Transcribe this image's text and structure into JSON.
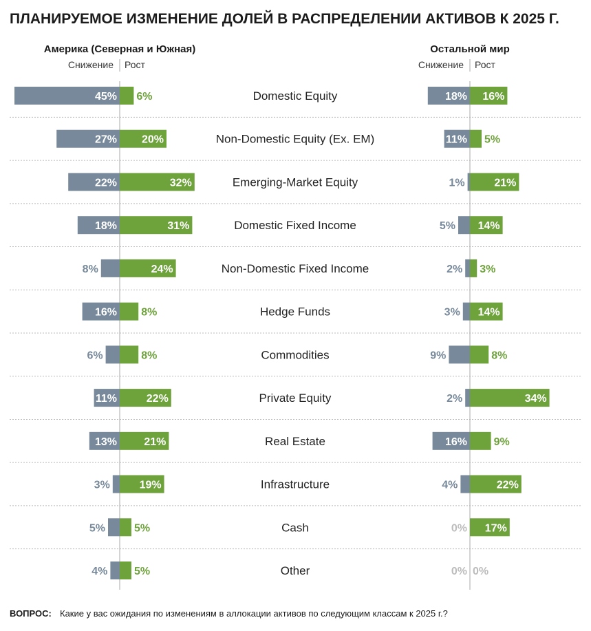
{
  "title": "ПЛАНИРУЕМОЕ ИЗМЕНЕНИЕ ДОЛЕЙ В РАСПРЕДЕЛЕНИИ АКТИВОВ К 2025 Г.",
  "colors": {
    "decrease": "#77899a",
    "increase": "#6ea23b",
    "axis": "#aaaaaa",
    "divider": "#bbbbbb",
    "zero": "#bcbcbc"
  },
  "chart_data": [
    {
      "type": "bar",
      "group": "Америка (Северная и Южная)",
      "decrease_label": "Снижение",
      "increase_label": "Рост",
      "categories": [
        "Domestic Equity",
        "Non-Domestic Equity (Ex. EM)",
        "Emerging-Market Equity",
        "Domestic Fixed Income",
        "Non-Domestic Fixed Income",
        "Hedge Funds",
        "Commodities",
        "Private Equity",
        "Real Estate",
        "Infrastructure",
        "Cash",
        "Other"
      ],
      "series": [
        {
          "name": "Снижение",
          "values": [
            45,
            27,
            22,
            18,
            8,
            16,
            6,
            11,
            13,
            3,
            5,
            4
          ]
        },
        {
          "name": "Рост",
          "values": [
            6,
            20,
            32,
            31,
            24,
            8,
            8,
            22,
            21,
            19,
            5,
            5
          ]
        }
      ]
    },
    {
      "type": "bar",
      "group": "Остальной мир",
      "decrease_label": "Снижение",
      "increase_label": "Рост",
      "categories": [
        "Domestic Equity",
        "Non-Domestic Equity (Ex. EM)",
        "Emerging-Market Equity",
        "Domestic Fixed Income",
        "Non-Domestic Fixed Income",
        "Hedge Funds",
        "Commodities",
        "Private Equity",
        "Real Estate",
        "Infrastructure",
        "Cash",
        "Other"
      ],
      "series": [
        {
          "name": "Снижение",
          "values": [
            18,
            11,
            1,
            5,
            2,
            3,
            9,
            2,
            16,
            4,
            0,
            0
          ]
        },
        {
          "name": "Рост",
          "values": [
            16,
            5,
            21,
            14,
            3,
            14,
            8,
            34,
            9,
            22,
            17,
            0
          ]
        }
      ]
    }
  ],
  "footer": {
    "question_label": "ВОПРОС:",
    "question_text": "Какие у вас ожидания по изменениям в аллокации активов по следующим классам к 2025 г.?"
  }
}
